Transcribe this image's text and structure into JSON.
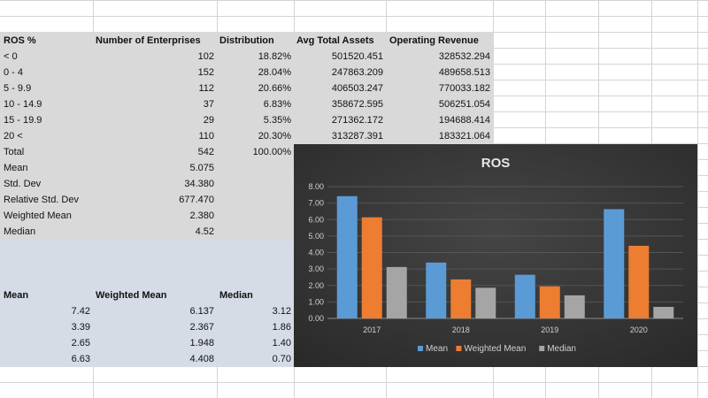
{
  "table": {
    "headers": {
      "ros": "ROS %",
      "enterprises": "Number of Enterprises",
      "distribution": "Distribution",
      "assets": "Avg Total Assets",
      "revenue": "Operating Revenue"
    },
    "rows": [
      {
        "ros": "< 0",
        "enterprises": "102",
        "distribution": "18.82%",
        "assets": "501520.451",
        "revenue": "328532.294"
      },
      {
        "ros": "0 - 4",
        "enterprises": "152",
        "distribution": "28.04%",
        "assets": "247863.209",
        "revenue": "489658.513"
      },
      {
        "ros": "5 - 9.9",
        "enterprises": "112",
        "distribution": "20.66%",
        "assets": "406503.247",
        "revenue": "770033.182"
      },
      {
        "ros": "10 - 14.9",
        "enterprises": "37",
        "distribution": "6.83%",
        "assets": "358672.595",
        "revenue": "506251.054"
      },
      {
        "ros": "15 - 19.9",
        "enterprises": "29",
        "distribution": "5.35%",
        "assets": "271362.172",
        "revenue": "194688.414"
      },
      {
        "ros": "20 <",
        "enterprises": "110",
        "distribution": "20.30%",
        "assets": "313287.391",
        "revenue": "183321.064"
      }
    ],
    "total": {
      "label": "Total",
      "enterprises": "542",
      "distribution": "100.00%"
    }
  },
  "stats": [
    {
      "label": "Mean",
      "value": "5.075"
    },
    {
      "label": "Std. Dev",
      "value": "34.380"
    },
    {
      "label": "Relative Std. Dev",
      "value": "677.470"
    },
    {
      "label": "Weighted Mean",
      "value": "2.380"
    },
    {
      "label": "Median",
      "value": "4.52"
    }
  ],
  "summary": {
    "headers": {
      "mean": "Mean",
      "weighted": "Weighted Mean",
      "median": "Median"
    },
    "rows": [
      {
        "mean": "7.42",
        "weighted": "6.137",
        "median": "3.12"
      },
      {
        "mean": "3.39",
        "weighted": "2.367",
        "median": "1.86"
      },
      {
        "mean": "2.65",
        "weighted": "1.948",
        "median": "1.40"
      },
      {
        "mean": "6.63",
        "weighted": "4.408",
        "median": "0.70"
      }
    ]
  },
  "colors": {
    "gray_fill": "#d9d9d9",
    "blue_fill": "#d6dce5",
    "chart_bg": "#3a3a3a",
    "series_mean": "#5b9bd5",
    "series_weighted": "#ed7d31",
    "series_median": "#a5a5a5"
  },
  "chart_data": {
    "type": "bar",
    "title": "ROS",
    "categories": [
      "2017",
      "2018",
      "2019",
      "2020"
    ],
    "series": [
      {
        "name": "Mean",
        "values": [
          7.42,
          3.39,
          2.65,
          6.63
        ]
      },
      {
        "name": "Weighted Mean",
        "values": [
          6.137,
          2.367,
          1.948,
          4.408
        ]
      },
      {
        "name": "Median",
        "values": [
          3.12,
          1.86,
          1.4,
          0.7
        ]
      }
    ],
    "yticks": [
      "0.00",
      "1.00",
      "2.00",
      "3.00",
      "4.00",
      "5.00",
      "6.00",
      "7.00",
      "8.00"
    ],
    "ylim": [
      0,
      8
    ],
    "grid": true,
    "legend": "bottom"
  }
}
